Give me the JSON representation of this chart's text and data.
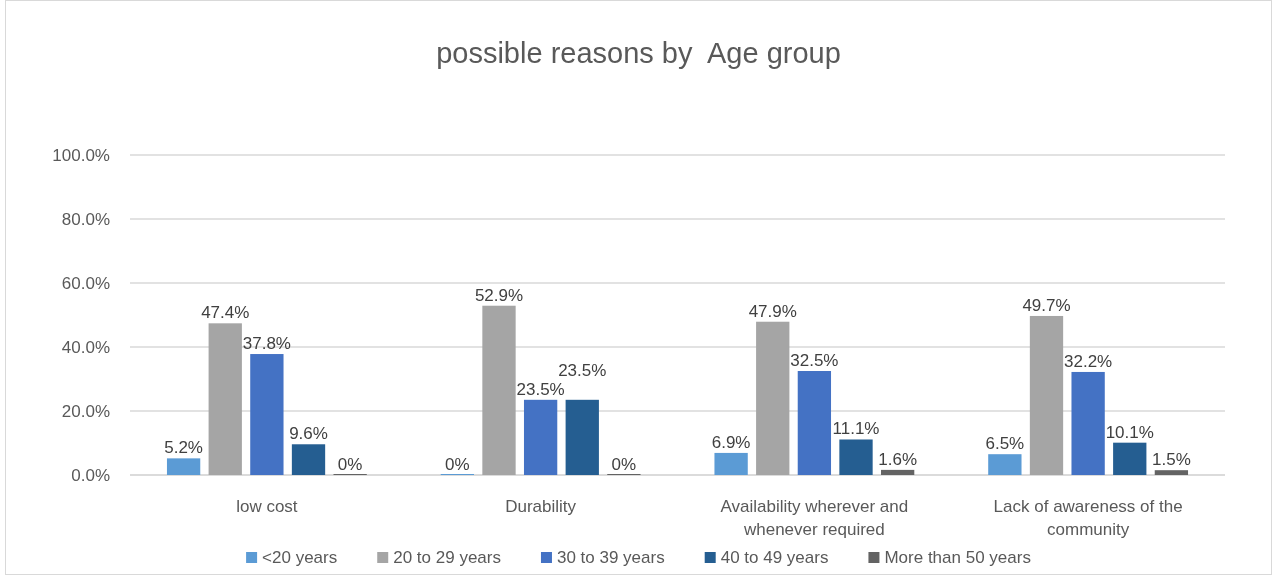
{
  "chart_data": {
    "type": "bar",
    "title": "possible reasons by  Age group",
    "categories": [
      "low cost",
      "Durability",
      "Availability wherever and whenever required",
      "Lack of awareness of the community"
    ],
    "series": [
      {
        "name": "<20 years",
        "color": "#5b9bd5",
        "values": [
          5.2,
          0,
          6.9,
          6.5
        ],
        "value_labels": [
          "5.2%",
          "0%",
          "6.9%",
          "6.5%"
        ]
      },
      {
        "name": "20 to 29 years",
        "color": "#a5a5a5",
        "values": [
          47.4,
          52.9,
          47.9,
          49.7
        ],
        "value_labels": [
          "47.4%",
          "52.9%",
          "47.9%",
          "49.7%"
        ]
      },
      {
        "name": "30 to 39 years",
        "color": "#4472c4",
        "values": [
          37.8,
          23.5,
          32.5,
          32.2
        ],
        "value_labels": [
          "37.8%",
          "23.5%",
          "32.5%",
          "32.2%"
        ]
      },
      {
        "name": "40 to 49 years",
        "color": "#255e91",
        "values": [
          9.6,
          23.5,
          11.1,
          10.1
        ],
        "value_labels": [
          "9.6%",
          "23.5%",
          "11.1%",
          "10.1%"
        ]
      },
      {
        "name": "More than 50 years",
        "color": "#636363",
        "values": [
          0,
          0,
          1.6,
          1.5
        ],
        "value_labels": [
          "0%",
          "0%",
          "1.6%",
          "1.5%"
        ]
      }
    ],
    "ylim": [
      0,
      100
    ],
    "yticks": [
      {
        "value": 0,
        "label": "0.0%"
      },
      {
        "value": 20,
        "label": "20.0%"
      },
      {
        "value": 40,
        "label": "40.0%"
      },
      {
        "value": 60,
        "label": "60.0%"
      },
      {
        "value": 80,
        "label": "80.0%"
      },
      {
        "value": 100,
        "label": "100.0%"
      }
    ],
    "grid": "y",
    "legend": "bottom"
  }
}
